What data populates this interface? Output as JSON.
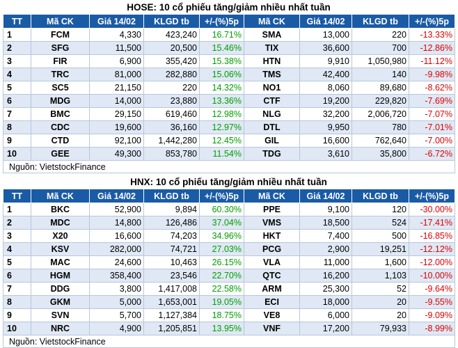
{
  "hose": {
    "title": "HOSE: 10 cổ phiếu tăng/giảm nhiều nhất tuần",
    "headers": [
      "TT",
      "Mã CK",
      "Giá 14/02",
      "KLGD tb",
      "+/-(%)5p",
      "Mã CK",
      "Giá 14/02",
      "KLGD tb",
      "+/-(%)5p"
    ],
    "rows": [
      [
        "1",
        "FCM",
        "4,330",
        "423,240",
        "16.71%",
        "SMA",
        "13,000",
        "220",
        "-13.33%"
      ],
      [
        "2",
        "SFG",
        "11,500",
        "20,500",
        "15.46%",
        "TIX",
        "36,600",
        "700",
        "-12.86%"
      ],
      [
        "3",
        "FIR",
        "6,900",
        "355,420",
        "15.38%",
        "HTN",
        "9,910",
        "1,050,980",
        "-11.12%"
      ],
      [
        "4",
        "TRC",
        "81,000",
        "282,880",
        "15.06%",
        "TMS",
        "42,400",
        "140",
        "-9.98%"
      ],
      [
        "5",
        "SC5",
        "21,150",
        "220",
        "14.32%",
        "NO1",
        "8,060",
        "89,680",
        "-8.62%"
      ],
      [
        "6",
        "MDG",
        "14,000",
        "23,880",
        "13.36%",
        "CTF",
        "19,200",
        "229,820",
        "-7.69%"
      ],
      [
        "7",
        "BMC",
        "29,150",
        "619,460",
        "12.98%",
        "NLG",
        "32,200",
        "2,006,720",
        "-7.07%"
      ],
      [
        "8",
        "CDC",
        "19,600",
        "36,160",
        "12.97%",
        "DTL",
        "9,950",
        "780",
        "-7.01%"
      ],
      [
        "9",
        "CTD",
        "92,100",
        "1,442,280",
        "12.45%",
        "GIL",
        "16,600",
        "762,640",
        "-7.00%"
      ],
      [
        "10",
        "GEE",
        "49,300",
        "853,780",
        "11.54%",
        "TDG",
        "3,610",
        "35,800",
        "-6.72%"
      ]
    ],
    "source": "Nguồn: VietstockFinance"
  },
  "hnx": {
    "title": "HNX: 10 cổ phiếu tăng/giảm nhiều nhất tuần",
    "headers": [
      "TT",
      "Mã CK",
      "Giá 14/02",
      "KLGD tb",
      "+/-(%)5p",
      "Mã CK",
      "Giá 14/02",
      "KLGD tb",
      "+/-(%)5p"
    ],
    "rows": [
      [
        "1",
        "BKC",
        "52,900",
        "9,894",
        "60.30%",
        "PPE",
        "9,100",
        "120",
        "-30.00%"
      ],
      [
        "2",
        "MDC",
        "14,800",
        "126,486",
        "37.04%",
        "VMS",
        "18,500",
        "524",
        "-17.41%"
      ],
      [
        "3",
        "X20",
        "16,600",
        "74,203",
        "34.96%",
        "HKT",
        "7,400",
        "500",
        "-16.85%"
      ],
      [
        "4",
        "KSV",
        "282,000",
        "74,721",
        "27.03%",
        "PCG",
        "2,900",
        "19,251",
        "-12.12%"
      ],
      [
        "5",
        "MAC",
        "24,600",
        "10,463",
        "26.15%",
        "VLA",
        "11,000",
        "1,600",
        "-12.00%"
      ],
      [
        "6",
        "HGM",
        "358,400",
        "23,546",
        "22.70%",
        "QTC",
        "16,200",
        "1,103",
        "-10.00%"
      ],
      [
        "7",
        "DDG",
        "3,800",
        "1,417,008",
        "22.58%",
        "ARM",
        "25,300",
        "52",
        "-9.64%"
      ],
      [
        "8",
        "GKM",
        "5,000",
        "1,653,001",
        "19.05%",
        "ECI",
        "18,000",
        "20",
        "-9.55%"
      ],
      [
        "9",
        "SVN",
        "5,700",
        "1,127,384",
        "18.75%",
        "VE8",
        "6,000",
        "20",
        "-9.09%"
      ],
      [
        "10",
        "NRC",
        "4,900",
        "1,205,851",
        "13.95%",
        "VNF",
        "17,200",
        "79,933",
        "-8.99%"
      ]
    ],
    "source": "Nguồn: VietstockFinance"
  },
  "colors": {
    "header_bg": "#1a5ba6",
    "row_alt": "#dfe8f4",
    "up": "#00a000",
    "down": "#e00000"
  }
}
